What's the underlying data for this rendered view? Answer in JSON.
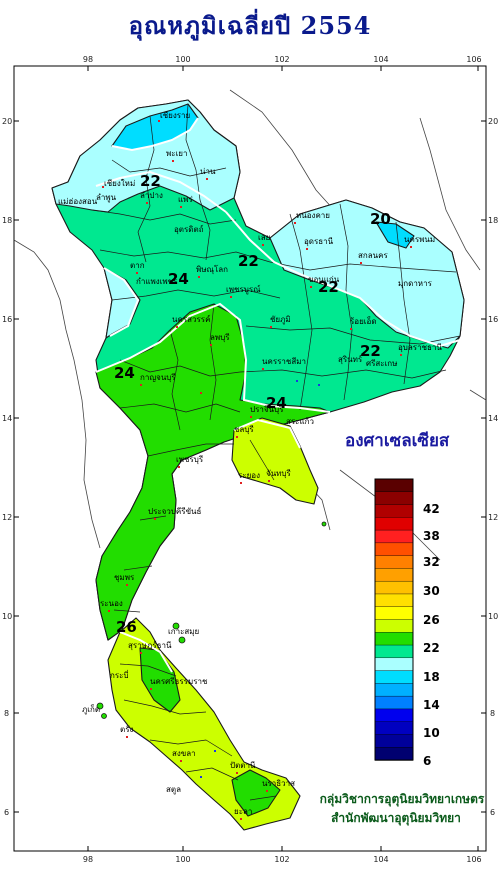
{
  "title": "อุณหภูมิเฉลี่ยปี 2554",
  "unit_label": "องศาเซลเซียส",
  "axes": {
    "x_ticks": [
      "98",
      "100",
      "102",
      "104",
      "106"
    ],
    "y_ticks": [
      "20",
      "18",
      "16",
      "14",
      "12",
      "10",
      "8",
      "6"
    ]
  },
  "legend": {
    "labels": [
      "42",
      "38",
      "32",
      "30",
      "26",
      "22",
      "18",
      "14",
      "10",
      "6"
    ],
    "colors": [
      "#5a0000",
      "#8b0000",
      "#b00000",
      "#e00000",
      "#ff2020",
      "#ff5000",
      "#ff8000",
      "#ffa000",
      "#ffc000",
      "#ffe000",
      "#ffff00",
      "#ccff00",
      "#22dd00",
      "#00e890",
      "#aaffff",
      "#00ddff",
      "#00b0ff",
      "#0080ff",
      "#0000ee",
      "#0000c0",
      "#00009a",
      "#000070"
    ]
  },
  "isotherms": [
    "22",
    "24",
    "22",
    "22",
    "22",
    "20",
    "24",
    "24",
    "26"
  ],
  "places": [
    "เชียงราย",
    "แม่ฮ่องสอน",
    "เชียงใหม่",
    "ลำพูน",
    "พะเยา",
    "น่าน",
    "ลำปาง",
    "แพร่",
    "หนองคาย",
    "อุตรดิตถ์",
    "เลย",
    "อุดรธานี",
    "สกลนคร",
    "นครพนม",
    "มุกดาหาร",
    "ตาก",
    "กำแพงเพชร",
    "พิษณุโลก",
    "เพชรบูรณ์",
    "ขอนแก่น",
    "นครสวรรค์",
    "ชัยภูมิ",
    "ร้อยเอ็ด",
    "อุบลราชธานี",
    "ศรีสะเกษ",
    "นครราชสีมา",
    "สุรินทร์",
    "ลพบุรี",
    "กาญจนบุรี",
    "ปราจีนบุรี",
    "สระแก้ว",
    "ชลบุรี",
    "ระยอง",
    "จันทบุรี",
    "เพชรบุรี",
    "ประจวบคีรีขันธ์",
    "ชุมพร",
    "ระนอง",
    "สุราษฎร์ธานี",
    "เกาะสมุย",
    "ภูเก็ต",
    "นครศรีธรรมราช",
    "กระบี่",
    "ตรัง",
    "สงขลา",
    "ปัตตานี",
    "นราธิวาส",
    "สตูล",
    "ยะลา"
  ],
  "credit": {
    "line1": "กลุ่มวิชาการอุตุนิยมวิทยาเกษตร",
    "line2": "สำนักพัฒนาอุตุนิยมวิทยา"
  }
}
